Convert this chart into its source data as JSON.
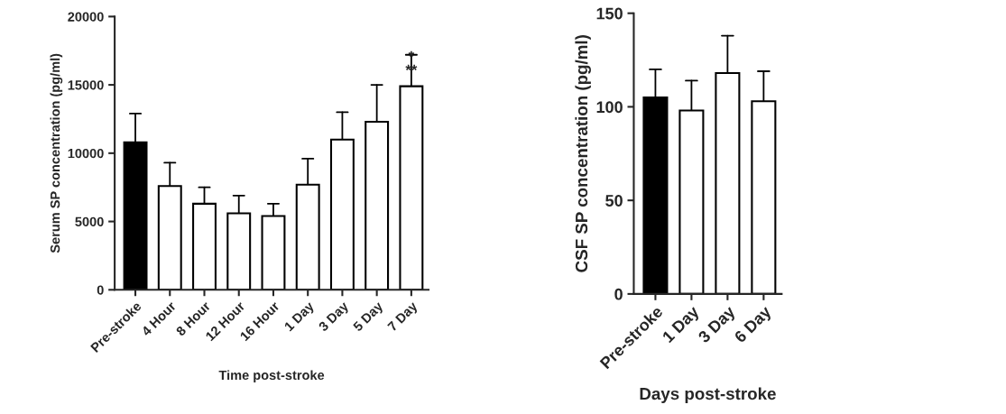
{
  "chart_data": [
    {
      "type": "bar",
      "xlabel": "Time post-stroke",
      "ylabel": "Serum SP concentration (pg/ml)",
      "categories": [
        "Pre-stroke",
        "4 Hour",
        "8 Hour",
        "12 Hour",
        "16 Hour",
        "1 Day",
        "3 Day",
        "5 Day",
        "7 Day"
      ],
      "values": [
        10800,
        7600,
        6300,
        5600,
        5400,
        7700,
        11000,
        12300,
        14900
      ],
      "colors": [
        "#000000",
        "#ffffff",
        "#ffffff",
        "#ffffff",
        "#ffffff",
        "#ffffff",
        "#ffffff",
        "#ffffff",
        "#ffffff"
      ],
      "errors": [
        [
          10800,
          12900
        ],
        [
          7600,
          9300
        ],
        [
          6300,
          7500
        ],
        [
          5600,
          6900
        ],
        [
          5400,
          6300
        ],
        [
          7700,
          9600
        ],
        [
          11000,
          13000
        ],
        [
          12300,
          15000
        ],
        [
          14900,
          17200
        ]
      ],
      "ylim": [
        0,
        20000
      ],
      "yticks": [
        0,
        5000,
        10000,
        15000,
        20000
      ],
      "annotations": [
        "*",
        "**"
      ]
    },
    {
      "type": "bar",
      "xlabel": "Days post-stroke",
      "ylabel": "CSF SP concentration (pg/ml)",
      "categories": [
        "Pre-stroke",
        "1 Day",
        "3 Day",
        "6 Day"
      ],
      "values": [
        105,
        98,
        118,
        103
      ],
      "colors": [
        "#000000",
        "#ffffff",
        "#ffffff",
        "#ffffff"
      ],
      "errors": [
        [
          105,
          120
        ],
        [
          98,
          114
        ],
        [
          118,
          138
        ],
        [
          103,
          119
        ]
      ],
      "ylim": [
        0,
        150
      ],
      "yticks": [
        0,
        50,
        100,
        150
      ]
    }
  ]
}
